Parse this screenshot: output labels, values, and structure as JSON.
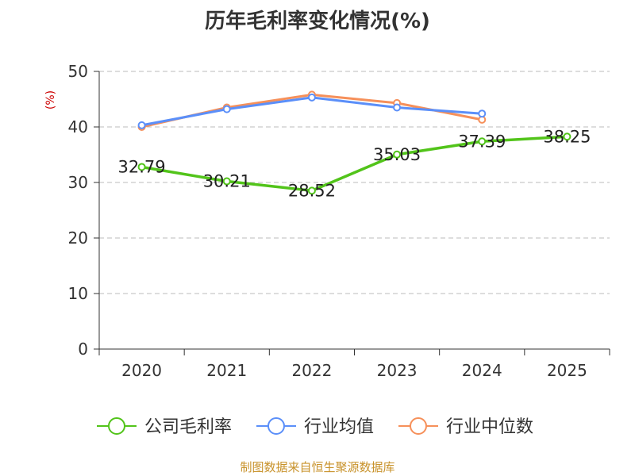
{
  "chart_data": {
    "type": "line",
    "title": "历年毛利率变化情况(%)",
    "ylabel": "(%)",
    "categories": [
      "2020",
      "2021",
      "2022",
      "2023",
      "2024",
      "2025"
    ],
    "ylim": [
      0,
      50
    ],
    "yticks": [
      "0",
      "10",
      "20",
      "30",
      "40",
      "50"
    ],
    "grid": true,
    "legend_position": "bottom",
    "series": [
      {
        "name": "公司毛利率",
        "color": "#52c41a",
        "values": [
          32.79,
          30.21,
          28.52,
          35.03,
          37.39,
          38.25
        ],
        "labels": [
          "32.79",
          "30.21",
          "28.52",
          "35.03",
          "37.39",
          "38.25"
        ]
      },
      {
        "name": "行业均值",
        "color": "#5b8ff9",
        "values": [
          40.3,
          43.2,
          45.3,
          43.5,
          42.4,
          null
        ]
      },
      {
        "name": "行业中位数",
        "color": "#f6905a",
        "values": [
          40.0,
          43.5,
          45.8,
          44.3,
          41.3,
          null
        ]
      }
    ]
  },
  "source": "制图数据来自恒生聚源数据库"
}
